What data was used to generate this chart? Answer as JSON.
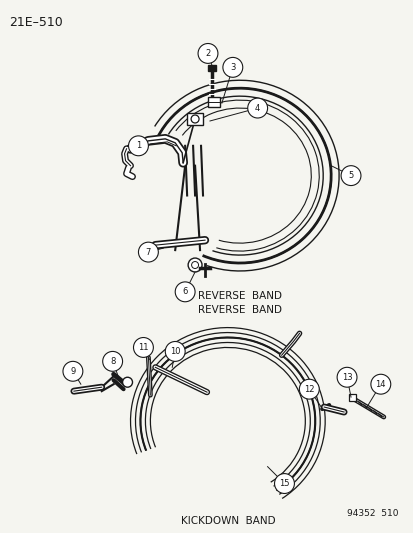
{
  "page_id": "21E–510",
  "footer_id": "94352  510",
  "section1_label": "REVERSE  BAND",
  "section2_label": "KICKDOWN  BAND",
  "bg_color": "#f5f5f0",
  "line_color": "#1a1a1a",
  "fig_w": 4.14,
  "fig_h": 5.33,
  "dpi": 100
}
